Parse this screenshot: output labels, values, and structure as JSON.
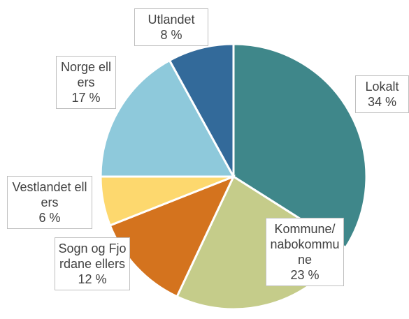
{
  "chart_data": {
    "type": "pie",
    "categories": [
      "Lokalt",
      "Kommune/ nabokommune",
      "Sogn og Fjordane ellers",
      "Vestlandet ellers",
      "Norge ellers",
      "Utlandet"
    ],
    "values": [
      34,
      23,
      12,
      6,
      17,
      8
    ],
    "value_labels": [
      "34 %",
      "23 %",
      "12 %",
      "6 %",
      "17 %",
      "8 %"
    ],
    "colors": [
      "#3f878a",
      "#c5cc8a",
      "#d4731e",
      "#fdd86e",
      "#8ec9db",
      "#336a9a"
    ]
  }
}
